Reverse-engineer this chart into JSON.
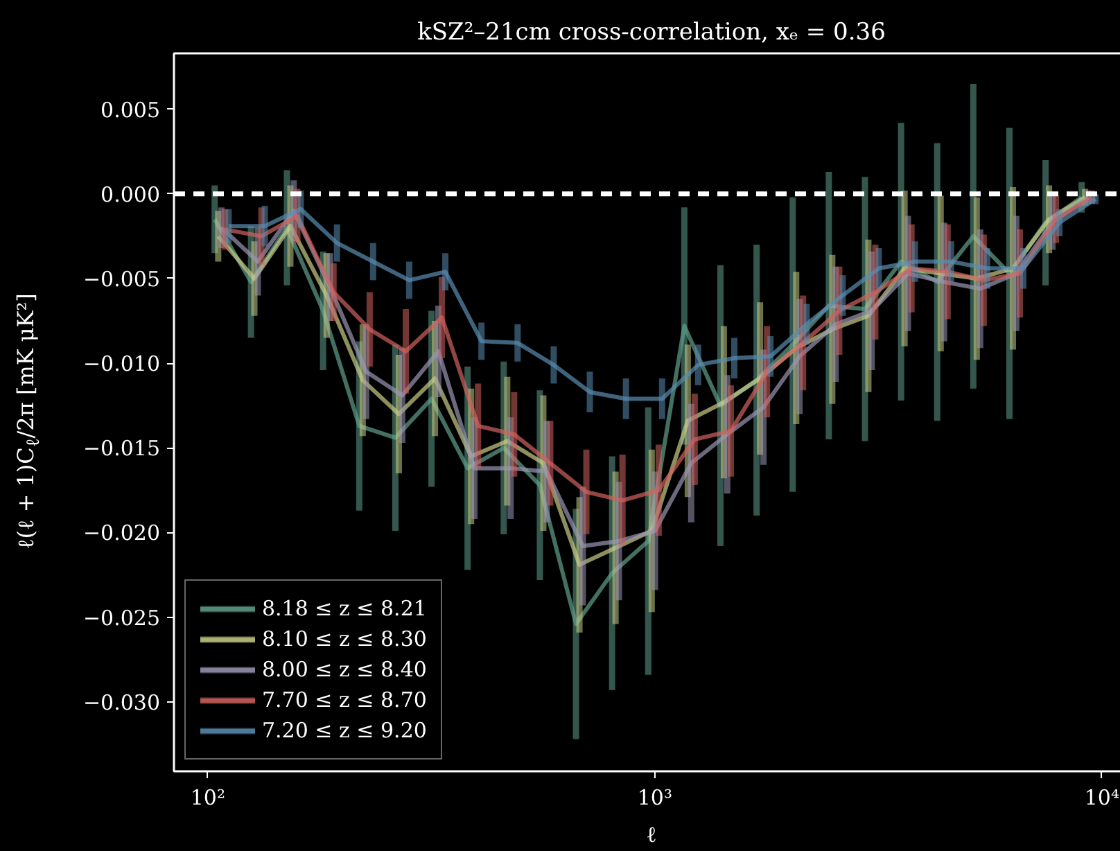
{
  "chart_data": {
    "type": "line",
    "title": "kSZ²–21cm cross-correlation, xₑ = 0.36",
    "xlabel": "ℓ",
    "ylabel": "ℓ(ℓ + 1)C$_{ℓ}$/2π [mK μK²]",
    "x": [
      103.6,
      124.9,
      150.3,
      181.1,
      218.2,
      262.8,
      316.5,
      381.2,
      459.2,
      553.1,
      666.2,
      802.4,
      966.5,
      1164,
      1402,
      1689,
      2034,
      2450,
      2951,
      3555,
      4282,
      5157,
      6212,
      7482,
      9011
    ],
    "series": [
      {
        "name": "8.18 ≤ z ≤ 8.21",
        "color": "#5f9f8c",
        "values": [
          -0.0015,
          -0.0052,
          -0.002,
          -0.0069,
          -0.0137,
          -0.0144,
          -0.0121,
          -0.0162,
          -0.015,
          -0.0172,
          -0.0254,
          -0.0224,
          -0.0205,
          -0.0078,
          -0.0125,
          -0.011,
          -0.0089,
          -0.0066,
          -0.0068,
          -0.004,
          -0.0052,
          -0.0025,
          -0.0047,
          -0.0017,
          -0.0002
        ],
        "errors": [
          0.002,
          0.0033,
          0.0034,
          0.0035,
          0.005,
          0.0055,
          0.0052,
          0.006,
          0.0051,
          0.0056,
          0.0068,
          0.0069,
          0.0079,
          0.007,
          0.0083,
          0.008,
          0.0087,
          0.0079,
          0.0078,
          0.0082,
          0.0082,
          0.009,
          0.0086,
          0.0037,
          0.0009
        ]
      },
      {
        "name": "8.10 ≤ z ≤ 8.30",
        "color": "#c9cc85",
        "x": [
          105.5,
          127.1,
          153.0,
          184.4,
          222.1,
          267.5,
          322.2,
          388.1,
          467.5,
          563.1,
          678.2,
          816.8,
          983.9,
          1185,
          1427,
          1719,
          2071,
          2494,
          3004,
          3619,
          4359,
          5250,
          6324,
          7617,
          9173
        ],
        "values": [
          -0.0025,
          -0.005,
          -0.0019,
          -0.006,
          -0.011,
          -0.013,
          -0.0109,
          -0.0155,
          -0.0146,
          -0.0159,
          -0.0219,
          -0.0209,
          -0.0199,
          -0.0134,
          -0.0123,
          -0.0109,
          -0.0091,
          -0.008,
          -0.0072,
          -0.0044,
          -0.0047,
          -0.005,
          -0.0044,
          -0.0015,
          -0.0002
        ],
        "errors": [
          0.0015,
          0.0022,
          0.0024,
          0.0025,
          0.0033,
          0.0035,
          0.0034,
          0.004,
          0.0038,
          0.004,
          0.004,
          0.0045,
          0.0048,
          0.0045,
          0.0045,
          0.0045,
          0.0045,
          0.0044,
          0.0045,
          0.0046,
          0.0046,
          0.0048,
          0.0048,
          0.002,
          0.0005
        ]
      },
      {
        "name": "8.00 ≤ z ≤ 8.40",
        "color": "#9a96b4",
        "x": [
          107.3,
          129.4,
          155.7,
          187.6,
          226.1,
          272.3,
          327.9,
          394.9,
          475.7,
          573.0,
          690.2,
          831.3,
          1001,
          1206,
          1452,
          1750,
          2107,
          2538,
          3057,
          3683,
          4436,
          5343,
          6436,
          7751,
          9335
        ],
        "values": [
          -0.002,
          -0.004,
          -0.001,
          -0.0055,
          -0.0105,
          -0.0119,
          -0.0093,
          -0.0162,
          -0.0162,
          -0.0164,
          -0.0208,
          -0.0205,
          -0.0199,
          -0.0159,
          -0.0142,
          -0.0126,
          -0.0096,
          -0.0077,
          -0.0069,
          -0.0047,
          -0.0052,
          -0.0056,
          -0.0047,
          -0.0017,
          -0.0002
        ],
        "errors": [
          0.0012,
          0.002,
          0.0018,
          0.002,
          0.0028,
          0.0028,
          0.0027,
          0.003,
          0.003,
          0.003,
          0.0035,
          0.0035,
          0.0035,
          0.0035,
          0.0035,
          0.0034,
          0.0034,
          0.0034,
          0.0035,
          0.0034,
          0.0035,
          0.0035,
          0.0034,
          0.0016,
          0.0004
        ]
      },
      {
        "name": "7.70 ≤ z ≤ 8.70",
        "color": "#d0625e",
        "x": [
          109.3,
          131.8,
          158.6,
          191.1,
          230.2,
          277.3,
          333.9,
          402.2,
          484.5,
          583.5,
          702.8,
          846.5,
          1020,
          1228,
          1479,
          1782,
          2146,
          2585,
          3113,
          3751,
          4518,
          5441,
          6554,
          7894,
          9507
        ],
        "values": [
          -0.0021,
          -0.0025,
          -0.0013,
          -0.0058,
          -0.008,
          -0.0093,
          -0.0073,
          -0.0137,
          -0.0142,
          -0.0159,
          -0.0176,
          -0.0181,
          -0.0175,
          -0.0145,
          -0.014,
          -0.0105,
          -0.0088,
          -0.0069,
          -0.0058,
          -0.0044,
          -0.0046,
          -0.0051,
          -0.0047,
          -0.0015,
          -0.0002
        ],
        "errors": [
          0.0012,
          0.0017,
          0.0016,
          0.0017,
          0.0022,
          0.0025,
          0.0024,
          0.0025,
          0.0025,
          0.0025,
          0.0025,
          0.0027,
          0.0027,
          0.0027,
          0.0027,
          0.0027,
          0.0028,
          0.0026,
          0.0028,
          0.0026,
          0.0028,
          0.0027,
          0.0026,
          0.0014,
          0.0004
        ]
      },
      {
        "name": "7.20 ≤ z ≤ 9.20",
        "color": "#5a8db0",
        "x": [
          111.3,
          134.1,
          161.4,
          194.5,
          234.3,
          282.2,
          339.9,
          409.4,
          493.2,
          594.0,
          715.5,
          861.8,
          1038,
          1250,
          1506,
          1814,
          2185,
          2631,
          3169,
          3818,
          4599,
          5539,
          6672,
          8036,
          9678
        ],
        "values": [
          -0.0019,
          -0.0019,
          -0.0009,
          -0.0029,
          -0.004,
          -0.0051,
          -0.0046,
          -0.0087,
          -0.0088,
          -0.0101,
          -0.0117,
          -0.0121,
          -0.0121,
          -0.0101,
          -0.0097,
          -0.0096,
          -0.0077,
          -0.006,
          -0.0044,
          -0.004,
          -0.004,
          -0.0044,
          -0.0044,
          -0.0017,
          -0.0003
        ],
        "errors": [
          0.001,
          0.0012,
          0.0011,
          0.0011,
          0.0011,
          0.0011,
          0.0011,
          0.0011,
          0.0011,
          0.0011,
          0.0012,
          0.0012,
          0.0012,
          0.0012,
          0.0012,
          0.0012,
          0.0012,
          0.0012,
          0.0012,
          0.0012,
          0.0012,
          0.0012,
          0.0012,
          0.0008,
          0.0003
        ]
      }
    ],
    "log": "x",
    "xlim": [
      84,
      11500
    ],
    "ylim": [
      -0.0341,
      0.0083
    ],
    "xticks": [
      {
        "value": 100,
        "label": "10²"
      },
      {
        "value": 1000,
        "label": "10³"
      },
      {
        "value": 10000,
        "label": "10⁴"
      }
    ],
    "yticks": [
      {
        "value": -0.03,
        "label": "−0.030"
      },
      {
        "value": -0.025,
        "label": "−0.025"
      },
      {
        "value": -0.02,
        "label": "−0.020"
      },
      {
        "value": -0.015,
        "label": "−0.015"
      },
      {
        "value": -0.01,
        "label": "−0.010"
      },
      {
        "value": -0.005,
        "label": "−0.005"
      },
      {
        "value": 0.0,
        "label": "0.000"
      },
      {
        "value": 0.005,
        "label": "0.005"
      }
    ],
    "ref_lines": [
      {
        "axis": "y",
        "value": 0,
        "color": "#ffffff",
        "line_style": "dashed"
      }
    ],
    "grid": false,
    "legend": "bottom left",
    "line_style": "solid",
    "marker": "none"
  }
}
